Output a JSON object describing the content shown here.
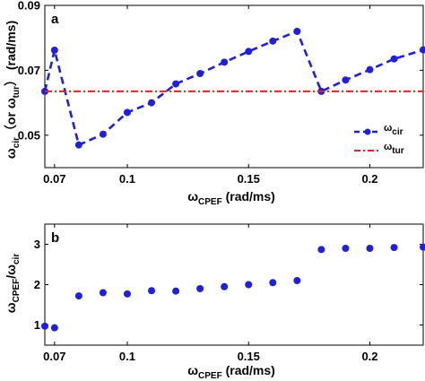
{
  "chart_data": [
    {
      "panel_label": "a",
      "type": "line",
      "xlim": [
        0.066,
        0.222
      ],
      "ylim": [
        0.04,
        0.09
      ],
      "x_ticks": [
        0.07,
        0.1,
        0.15,
        0.2
      ],
      "x_tick_labels": [
        "0.07",
        "0.1",
        "0.15",
        "0.2"
      ],
      "y_ticks": [
        0.05,
        0.07,
        0.09
      ],
      "y_tick_labels": [
        "0.05",
        "0.07",
        "0.09"
      ],
      "xlabel": {
        "main": "ω",
        "sub": "CPEF",
        "unit": " (rad/ms)"
      },
      "ylabel": {
        "p1": "ω",
        "s1": "cir",
        "p2": "（or ω",
        "s2": "tur",
        "p3": "）  (rad/ms)"
      },
      "legend": {
        "position": "right",
        "entries": [
          {
            "label": "ω",
            "sub": "cir"
          },
          {
            "label": "ω",
            "sub": "tur"
          }
        ]
      },
      "series": [
        {
          "name": "ωcir",
          "style": "dashed-markers",
          "color": "#1f1fdc",
          "x": [
            0.066,
            0.07,
            0.08,
            0.09,
            0.1,
            0.11,
            0.12,
            0.13,
            0.14,
            0.15,
            0.16,
            0.17,
            0.18,
            0.19,
            0.2,
            0.21,
            0.222
          ],
          "y": [
            0.0635,
            0.0762,
            0.047,
            0.0503,
            0.057,
            0.06,
            0.0658,
            0.069,
            0.0725,
            0.0758,
            0.079,
            0.082,
            0.0635,
            0.067,
            0.0702,
            0.0735,
            0.0763
          ]
        },
        {
          "name": "ωtur",
          "style": "dash-dot",
          "color": "#e32020",
          "x": [
            0.066,
            0.222
          ],
          "y": [
            0.0635,
            0.0635
          ]
        }
      ]
    },
    {
      "panel_label": "b",
      "type": "scatter",
      "xlim": [
        0.066,
        0.222
      ],
      "ylim": [
        0.5,
        3.5
      ],
      "x_ticks": [
        0.07,
        0.1,
        0.15,
        0.2
      ],
      "x_tick_labels": [
        "0.07",
        "0.1",
        "0.15",
        "0.2"
      ],
      "y_ticks": [
        1,
        2,
        3
      ],
      "y_tick_labels": [
        "1",
        "2",
        "3"
      ],
      "xlabel": {
        "main": "ω",
        "sub": "CPEF",
        "unit": " (rad/ms)"
      },
      "ylabel": {
        "p1": "ω",
        "s1": "CPEF",
        "p2": "/ω",
        "s2": "cir"
      },
      "series": [
        {
          "color": "#1f1fdc",
          "x": [
            0.066,
            0.07,
            0.08,
            0.09,
            0.1,
            0.11,
            0.12,
            0.13,
            0.14,
            0.15,
            0.16,
            0.17,
            0.18,
            0.19,
            0.2,
            0.21,
            0.222
          ],
          "y": [
            0.97,
            0.93,
            1.72,
            1.8,
            1.77,
            1.85,
            1.84,
            1.9,
            1.95,
            2.0,
            2.05,
            2.1,
            2.87,
            2.9,
            2.9,
            2.92,
            2.93
          ]
        }
      ]
    }
  ]
}
